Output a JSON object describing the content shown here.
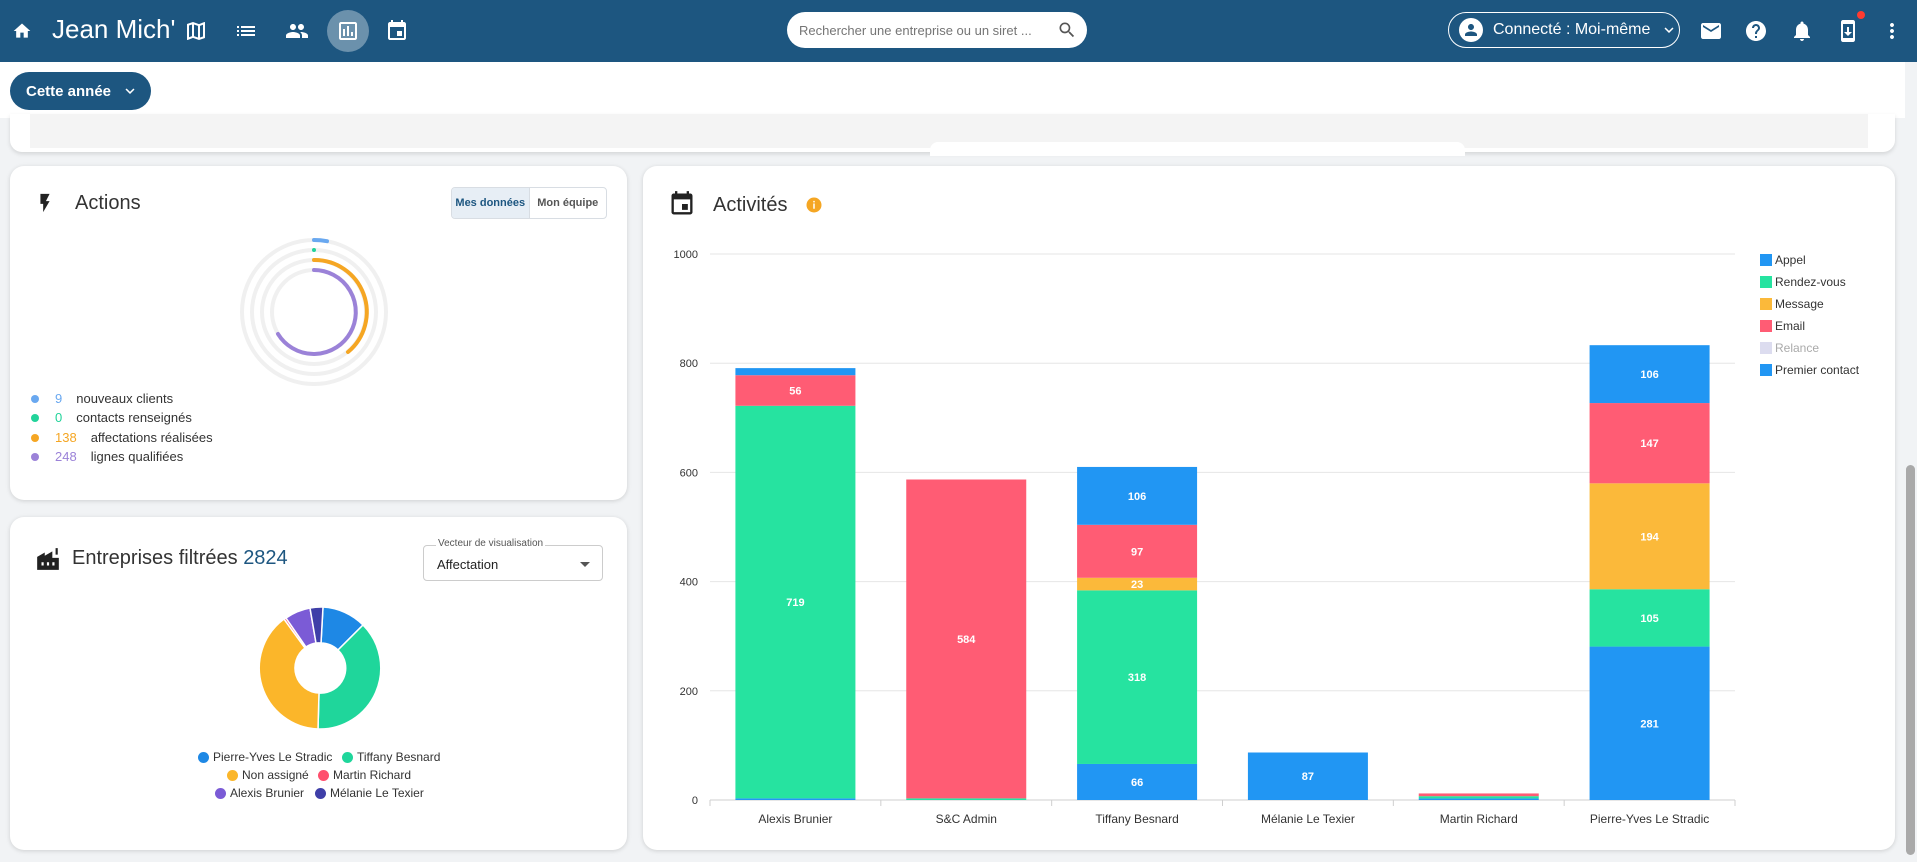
{
  "header": {
    "app_title": "Jean Mich'",
    "search_placeholder": "Rechercher une entreprise ou un siret ...",
    "connected_label": "Connecté : Moi-même",
    "nav_icons": [
      "home-icon",
      "map-icon",
      "list-icon",
      "people-icon",
      "stats-icon",
      "calendar-icon"
    ],
    "right_icons": [
      "mail-icon",
      "help-icon",
      "bell-icon",
      "download-phone-icon",
      "more-vert-icon"
    ]
  },
  "filter": {
    "year_label": "Cette année"
  },
  "actions_card": {
    "title": "Actions",
    "toggle": [
      "Mes données",
      "Mon équipe"
    ],
    "legend": [
      {
        "value": "9",
        "label": "nouveaux clients",
        "color": "#69a8f0"
      },
      {
        "value": "0",
        "label": "contacts renseignés",
        "color": "#22d39a"
      },
      {
        "value": "138",
        "label": "affectations réalisées",
        "color": "#f5a623"
      },
      {
        "value": "248",
        "label": "lignes qualifiées",
        "color": "#9b82d8"
      }
    ]
  },
  "companies_card": {
    "title": "Entreprises filtrées",
    "count": "2824",
    "select_label": "Vecteur de visualisation",
    "select_value": "Affectation",
    "legend": [
      {
        "label": "Pierre-Yves Le Stradic",
        "color": "#1e88e5"
      },
      {
        "label": "Tiffany Besnard",
        "color": "#1fd69b"
      },
      {
        "label": "Non assigné",
        "color": "#fbb62a"
      },
      {
        "label": "Martin Richard",
        "color": "#ff4f6d"
      },
      {
        "label": "Alexis Brunier",
        "color": "#7b5bd6"
      },
      {
        "label": "Mélanie Le Texier",
        "color": "#3f3fa8"
      }
    ]
  },
  "activities_card": {
    "title": "Activités"
  },
  "chart_data": {
    "type": "bar",
    "stacked": true,
    "title": "Activités",
    "categories": [
      "Alexis Brunier",
      "S&C Admin",
      "Tiffany Besnard",
      "Mélanie Le Texier",
      "Martin Richard",
      "Pierre-Yves Le Stradic"
    ],
    "ylim": [
      0,
      1000
    ],
    "yticks": [
      "0",
      "200",
      "400",
      "600",
      "800",
      "1000"
    ],
    "legend_position": "right",
    "series": [
      {
        "name": "Premier contact",
        "color": "#2196f3",
        "values": [
          3,
          0,
          66,
          87,
          3,
          281
        ]
      },
      {
        "name": "Rendez-vous",
        "color": "#26e3a0",
        "values": [
          719,
          3,
          318,
          0,
          4,
          105
        ]
      },
      {
        "name": "Message",
        "color": "#fbb93a",
        "values": [
          0,
          0,
          23,
          0,
          0,
          194
        ]
      },
      {
        "name": "Email",
        "color": "#ff5c74",
        "values": [
          56,
          584,
          97,
          0,
          5,
          147
        ]
      },
      {
        "name": "Relance",
        "color": "#dcdcef",
        "values": [
          0,
          0,
          0,
          0,
          0,
          0
        ]
      },
      {
        "name": "Appel",
        "color": "#2196f3",
        "values": [
          13,
          0,
          106,
          0,
          0,
          106
        ]
      }
    ],
    "legend": [
      {
        "name": "Appel",
        "color": "#2196f3"
      },
      {
        "name": "Rendez-vous",
        "color": "#26e3a0"
      },
      {
        "name": "Message",
        "color": "#fbb93a"
      },
      {
        "name": "Email",
        "color": "#ff5c74"
      },
      {
        "name": "Relance",
        "color": "#dcdcef",
        "disabled": true
      },
      {
        "name": "Premier contact",
        "color": "#2196f3"
      }
    ]
  }
}
